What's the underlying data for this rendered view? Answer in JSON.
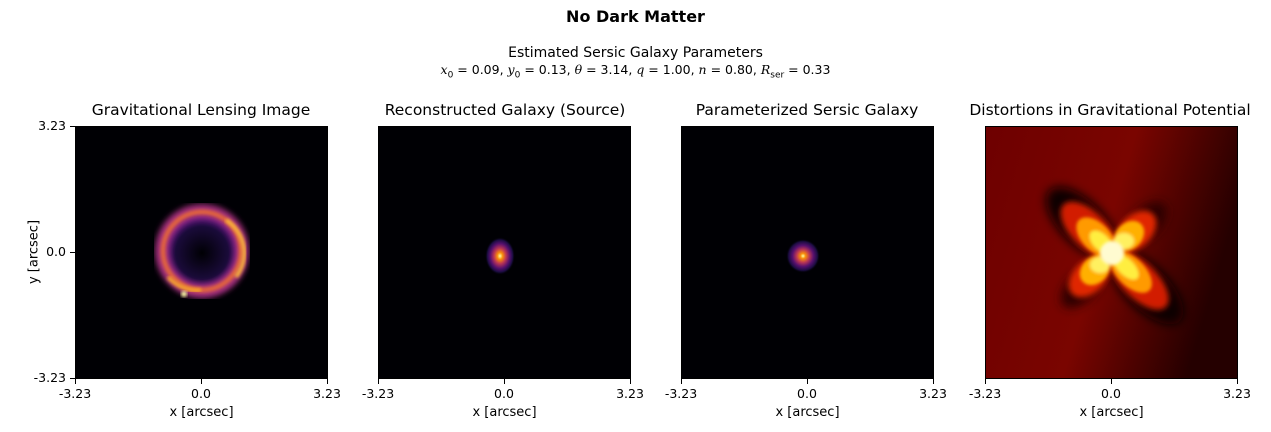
{
  "suptitle": "No Dark Matter",
  "subtitle": {
    "line1": "Estimated Sersic Galaxy Parameters",
    "params": [
      {
        "sym": "x",
        "sub": "0",
        "val": "0.09"
      },
      {
        "sym": "y",
        "sub": "0",
        "val": "0.13"
      },
      {
        "sym": "θ",
        "sub": "",
        "val": "3.14"
      },
      {
        "sym": "q",
        "sub": "",
        "val": "1.00"
      },
      {
        "sym": "n",
        "sub": "",
        "val": "0.80"
      },
      {
        "sym": "R",
        "sub": "ser",
        "val": "0.33"
      }
    ]
  },
  "chart_data": [
    {
      "type": "heatmap",
      "title": "Gravitational Lensing Image",
      "xlabel": "x [arcsec]",
      "ylabel": "y [arcsec]",
      "xlim": [
        -3.23,
        3.23
      ],
      "ylim": [
        -3.23,
        3.23
      ],
      "xticks": [
        "-3.23",
        "0.0",
        "3.23"
      ],
      "yticks": [
        "3.23",
        "0.0",
        "-3.23"
      ],
      "colormap": "inferno"
    },
    {
      "type": "heatmap",
      "title": "Reconstructed Galaxy (Source)",
      "xlabel": "x [arcsec]",
      "xlim": [
        -3.23,
        3.23
      ],
      "ylim": [
        -3.23,
        3.23
      ],
      "xticks": [
        "-3.23",
        "0.0",
        "3.23"
      ],
      "colormap": "inferno"
    },
    {
      "type": "heatmap",
      "title": "Parameterized Sersic Galaxy",
      "xlabel": "x [arcsec]",
      "xlim": [
        -3.23,
        3.23
      ],
      "ylim": [
        -3.23,
        3.23
      ],
      "xticks": [
        "-3.23",
        "0.0",
        "3.23"
      ],
      "colormap": "inferno"
    },
    {
      "type": "heatmap",
      "title": "Distortions in Gravitational Potential",
      "xlabel": "x [arcsec]",
      "xlim": [
        -3.23,
        3.23
      ],
      "ylim": [
        -3.23,
        3.23
      ],
      "xticks": [
        "-3.23",
        "0.0",
        "3.23"
      ],
      "colormap": "hot"
    }
  ]
}
